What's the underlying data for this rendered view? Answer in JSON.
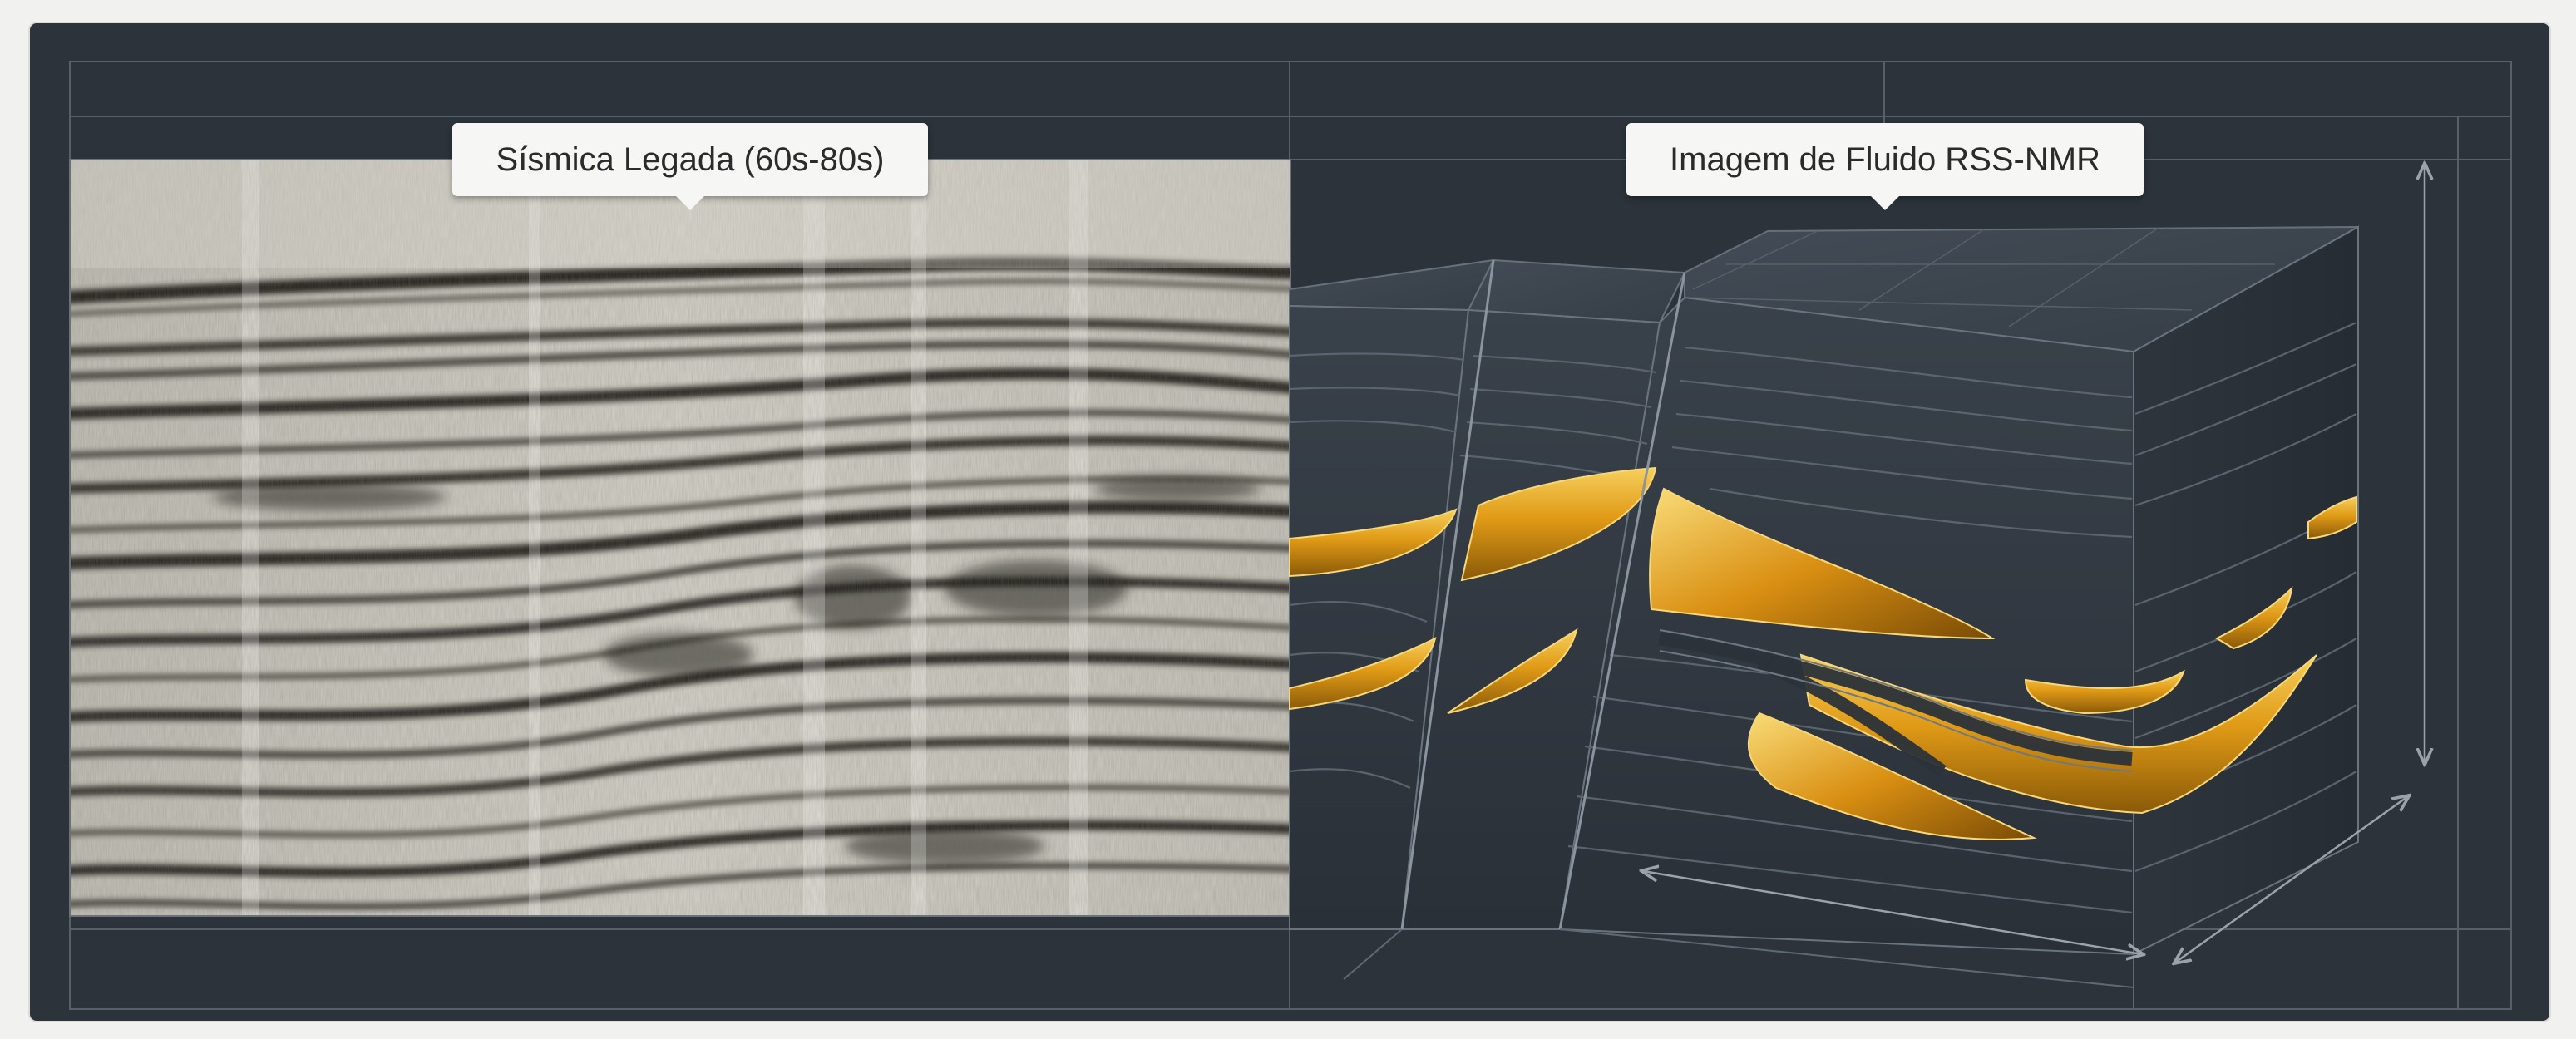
{
  "panels": {
    "legacy_seismic": {
      "label": "Sísmica Legada (60s-80s)"
    },
    "rss_nmr": {
      "label": "Imagem de Fluido RSS-NMR"
    }
  },
  "colors": {
    "frame_background": "#2c333b",
    "grid_lines": "#5c6670",
    "seismic_paper": "#c9c6bb",
    "seismic_reflector": "#2a2824",
    "block_layers": "#3a434d",
    "fluid_gold": "#e2a21c"
  },
  "icons": [
    "vertical-dimension-arrow-icon",
    "depth-dimension-arrow-icon",
    "horizontal-dimension-arrow-icon"
  ]
}
